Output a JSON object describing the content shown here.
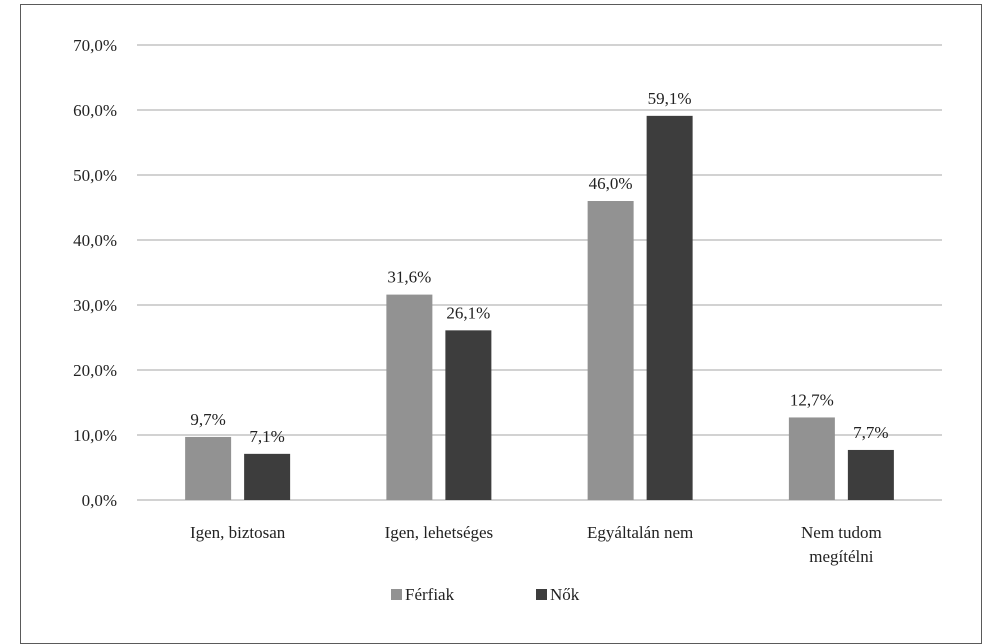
{
  "chart_data": {
    "type": "bar",
    "categories": [
      [
        "Igen, biztosan"
      ],
      [
        "Igen, lehetséges"
      ],
      [
        "Egyáltalán nem"
      ],
      [
        "Nem tudom",
        "megítélni"
      ]
    ],
    "series": [
      {
        "name": "Férfiak",
        "values": [
          9.7,
          31.6,
          46.0,
          12.7
        ],
        "labels": [
          "9,7%",
          "31,6%",
          "46,0%",
          "12,7%"
        ],
        "color": "#929292"
      },
      {
        "name": "Nők",
        "values": [
          7.1,
          26.1,
          59.1,
          7.7
        ],
        "labels": [
          "7,1%",
          "26,1%",
          "59,1%",
          "7,7%"
        ],
        "color": "#3d3d3d"
      }
    ],
    "ylim": [
      0,
      70
    ],
    "yticks": [
      0,
      10,
      20,
      30,
      40,
      50,
      60,
      70
    ],
    "ytick_labels": [
      "0,0%",
      "10,0%",
      "20,0%",
      "30,0%",
      "40,0%",
      "50,0%",
      "60,0%",
      "70,0%"
    ],
    "grid": true,
    "gridline_color": "#a6a6a6",
    "legend_position": "bottom-center"
  }
}
